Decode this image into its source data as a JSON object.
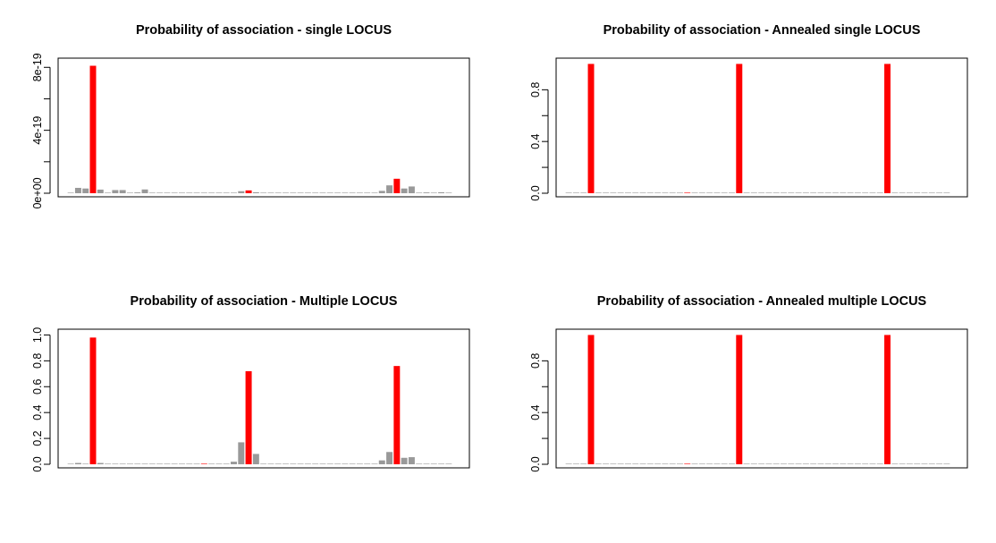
{
  "chart_data": [
    {
      "type": "bar",
      "title": "Probability of association - single LOCUS",
      "xlabel": "",
      "ylabel": "",
      "ylim": [
        0,
        8.3e-19
      ],
      "yticks": [
        0,
        2e-19,
        4e-19,
        6e-19,
        8e-19
      ],
      "ytick_labels": [
        "0e+00",
        "",
        "4e-19",
        "",
        "8e-19"
      ],
      "colors": {
        "highlight": "#ff0000",
        "other": "#999999"
      },
      "values": [
        0,
        3.4e-20,
        3e-20,
        8.1e-19,
        2.3e-20,
        0,
        2e-20,
        2e-20,
        0,
        5e-21,
        2.4e-20,
        0,
        0,
        0,
        0,
        0,
        0,
        0,
        0,
        0,
        0,
        0,
        3e-21,
        1.3e-20,
        1.8e-20,
        6e-21,
        0,
        0,
        0,
        0,
        0,
        0,
        0,
        0,
        0,
        0,
        0,
        0,
        0,
        0,
        0,
        0,
        1.5e-20,
        5e-20,
        9.2e-20,
        3e-20,
        4.3e-20,
        0,
        5e-21,
        2e-21,
        6e-21,
        0
      ],
      "highlight": [
        false,
        false,
        false,
        true,
        false,
        false,
        false,
        false,
        false,
        false,
        false,
        false,
        false,
        false,
        false,
        false,
        false,
        false,
        false,
        false,
        false,
        false,
        false,
        false,
        true,
        false,
        false,
        false,
        false,
        false,
        false,
        false,
        false,
        false,
        false,
        false,
        false,
        false,
        false,
        false,
        false,
        false,
        false,
        false,
        true,
        false,
        false,
        false,
        false,
        false,
        false,
        false
      ]
    },
    {
      "type": "bar",
      "title": "Probability of association - Annealed single LOCUS",
      "xlabel": "",
      "ylabel": "",
      "ylim": [
        0,
        1.01
      ],
      "yticks": [
        0,
        0.2,
        0.4,
        0.6,
        0.8
      ],
      "ytick_labels": [
        "0.0",
        "",
        "0.4",
        "",
        "0.8"
      ],
      "colors": {
        "highlight": "#ff0000",
        "other": "#999999"
      },
      "values": [
        0,
        0,
        0,
        1.0,
        0,
        0,
        0,
        0,
        0,
        0,
        0,
        0,
        0,
        0,
        0,
        0,
        0,
        0,
        0,
        0,
        0,
        0,
        0,
        1.0,
        0,
        0,
        0,
        0,
        0,
        0,
        0,
        0,
        0,
        0,
        0,
        0,
        0,
        0,
        0,
        0,
        0,
        0,
        0,
        1.0,
        0,
        0,
        0,
        0,
        0,
        0,
        0,
        0
      ],
      "highlight": [
        false,
        false,
        false,
        true,
        false,
        false,
        false,
        false,
        false,
        false,
        false,
        false,
        false,
        false,
        false,
        false,
        true,
        false,
        false,
        false,
        false,
        false,
        false,
        true,
        false,
        false,
        false,
        false,
        false,
        false,
        false,
        false,
        false,
        false,
        false,
        false,
        false,
        false,
        false,
        false,
        false,
        false,
        false,
        true,
        false,
        false,
        false,
        false,
        false,
        false,
        false,
        false
      ]
    },
    {
      "type": "bar",
      "title": "Probability of association - Multiple LOCUS",
      "xlabel": "",
      "ylabel": "",
      "ylim": [
        0,
        1.01
      ],
      "yticks": [
        0,
        0.2,
        0.4,
        0.6,
        0.8,
        1.0
      ],
      "ytick_labels": [
        "0.0",
        "0.2",
        "0.4",
        "0.6",
        "0.8",
        "1.0"
      ],
      "colors": {
        "highlight": "#ff0000",
        "other": "#999999"
      },
      "values": [
        0,
        0.01,
        0,
        0.98,
        0.01,
        0,
        0.004,
        0.004,
        0,
        0,
        0,
        0,
        0,
        0,
        0.004,
        0,
        0.004,
        0.004,
        0.004,
        0.004,
        0,
        0,
        0.02,
        0.17,
        0.72,
        0.08,
        0,
        0,
        0,
        0,
        0,
        0,
        0,
        0,
        0,
        0,
        0,
        0,
        0,
        0,
        0,
        0,
        0.03,
        0.095,
        0.76,
        0.05,
        0.055,
        0,
        0.004,
        0,
        0.004,
        0
      ],
      "highlight": [
        false,
        false,
        false,
        true,
        false,
        false,
        false,
        false,
        false,
        false,
        false,
        false,
        false,
        false,
        false,
        false,
        false,
        false,
        true,
        false,
        false,
        false,
        false,
        false,
        true,
        false,
        false,
        false,
        false,
        false,
        false,
        false,
        false,
        false,
        false,
        false,
        false,
        false,
        false,
        false,
        false,
        false,
        false,
        false,
        true,
        false,
        false,
        false,
        false,
        false,
        false,
        false
      ]
    },
    {
      "type": "bar",
      "title": "Probability of association - Annealed multiple LOCUS",
      "xlabel": "",
      "ylabel": "",
      "ylim": [
        0,
        1.01
      ],
      "yticks": [
        0,
        0.2,
        0.4,
        0.6,
        0.8
      ],
      "ytick_labels": [
        "0.0",
        "",
        "0.4",
        "",
        "0.8"
      ],
      "colors": {
        "highlight": "#ff0000",
        "other": "#999999"
      },
      "values": [
        0,
        0,
        0,
        1.0,
        0,
        0,
        0,
        0,
        0,
        0,
        0,
        0,
        0,
        0,
        0,
        0,
        0,
        0,
        0,
        0,
        0,
        0,
        0,
        1.0,
        0,
        0,
        0,
        0,
        0,
        0,
        0,
        0,
        0,
        0,
        0,
        0,
        0,
        0,
        0,
        0,
        0,
        0,
        0,
        1.0,
        0,
        0,
        0,
        0,
        0,
        0,
        0,
        0
      ],
      "highlight": [
        false,
        false,
        false,
        true,
        false,
        false,
        false,
        false,
        false,
        false,
        false,
        false,
        false,
        false,
        false,
        false,
        true,
        false,
        false,
        false,
        false,
        false,
        false,
        true,
        false,
        false,
        false,
        false,
        false,
        false,
        false,
        false,
        false,
        false,
        false,
        false,
        false,
        false,
        false,
        false,
        false,
        false,
        false,
        true,
        false,
        false,
        false,
        false,
        false,
        false,
        false,
        false
      ]
    }
  ]
}
